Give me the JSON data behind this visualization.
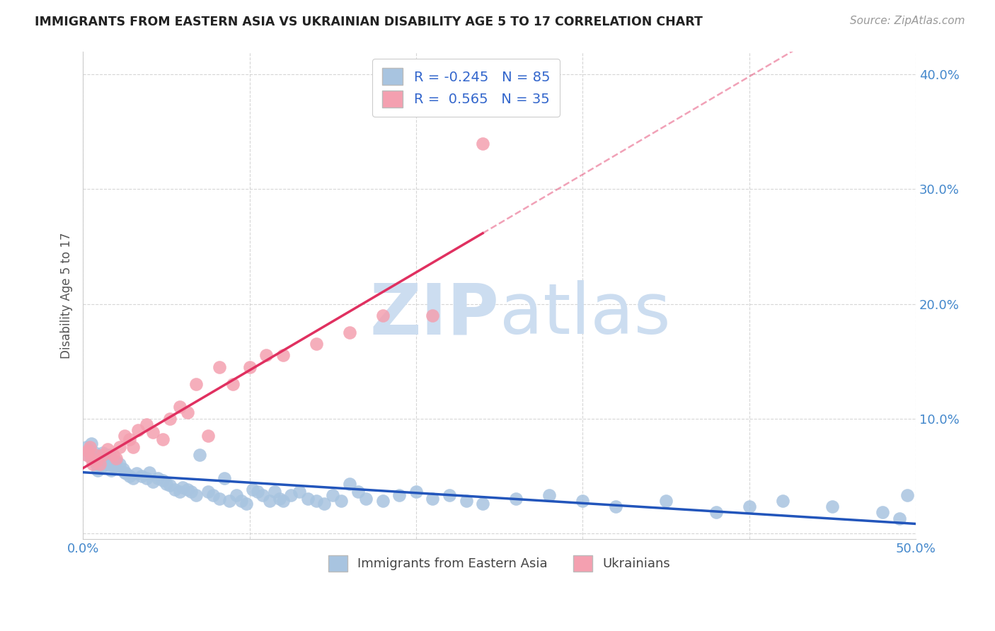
{
  "title": "IMMIGRANTS FROM EASTERN ASIA VS UKRAINIAN DISABILITY AGE 5 TO 17 CORRELATION CHART",
  "source": "Source: ZipAtlas.com",
  "ylabel": "Disability Age 5 to 17",
  "xlim": [
    0.0,
    0.5
  ],
  "ylim": [
    -0.005,
    0.42
  ],
  "yticks": [
    0.0,
    0.1,
    0.2,
    0.3,
    0.4
  ],
  "ytick_labels": [
    "",
    "10.0%",
    "20.0%",
    "30.0%",
    "40.0%"
  ],
  "xticks": [
    0.0,
    0.1,
    0.2,
    0.3,
    0.4,
    0.5
  ],
  "xtick_labels": [
    "0.0%",
    "",
    "",
    "",
    "",
    "50.0%"
  ],
  "blue_R": -0.245,
  "blue_N": 85,
  "pink_R": 0.565,
  "pink_N": 35,
  "blue_color": "#a8c4e0",
  "pink_color": "#f4a0b0",
  "blue_line_color": "#2255bb",
  "pink_line_color": "#e03060",
  "grid_color": "#cccccc",
  "background_color": "#ffffff",
  "watermark_color": "#ccddf0",
  "legend_label_blue": "Immigrants from Eastern Asia",
  "legend_label_pink": "Ukrainians",
  "blue_x": [
    0.002,
    0.003,
    0.004,
    0.005,
    0.006,
    0.007,
    0.008,
    0.009,
    0.01,
    0.011,
    0.012,
    0.013,
    0.014,
    0.015,
    0.016,
    0.017,
    0.018,
    0.019,
    0.02,
    0.022,
    0.024,
    0.025,
    0.026,
    0.028,
    0.03,
    0.032,
    0.035,
    0.038,
    0.04,
    0.042,
    0.045,
    0.048,
    0.05,
    0.052,
    0.055,
    0.058,
    0.06,
    0.063,
    0.065,
    0.068,
    0.07,
    0.075,
    0.078,
    0.082,
    0.085,
    0.088,
    0.092,
    0.095,
    0.098,
    0.102,
    0.105,
    0.108,
    0.112,
    0.115,
    0.118,
    0.12,
    0.125,
    0.13,
    0.135,
    0.14,
    0.145,
    0.15,
    0.155,
    0.16,
    0.165,
    0.17,
    0.18,
    0.19,
    0.2,
    0.21,
    0.22,
    0.23,
    0.24,
    0.26,
    0.28,
    0.3,
    0.32,
    0.35,
    0.38,
    0.4,
    0.42,
    0.45,
    0.48,
    0.49,
    0.495
  ],
  "blue_y": [
    0.075,
    0.068,
    0.072,
    0.078,
    0.065,
    0.07,
    0.06,
    0.055,
    0.063,
    0.058,
    0.07,
    0.065,
    0.068,
    0.06,
    0.068,
    0.055,
    0.06,
    0.058,
    0.063,
    0.06,
    0.056,
    0.053,
    0.052,
    0.05,
    0.048,
    0.052,
    0.05,
    0.048,
    0.053,
    0.045,
    0.048,
    0.046,
    0.043,
    0.042,
    0.038,
    0.036,
    0.04,
    0.038,
    0.036,
    0.033,
    0.068,
    0.036,
    0.033,
    0.03,
    0.048,
    0.028,
    0.033,
    0.028,
    0.026,
    0.038,
    0.036,
    0.033,
    0.028,
    0.036,
    0.03,
    0.028,
    0.033,
    0.036,
    0.03,
    0.028,
    0.026,
    0.033,
    0.028,
    0.043,
    0.036,
    0.03,
    0.028,
    0.033,
    0.036,
    0.03,
    0.033,
    0.028,
    0.026,
    0.03,
    0.033,
    0.028,
    0.023,
    0.028,
    0.018,
    0.023,
    0.028,
    0.023,
    0.018,
    0.013,
    0.033
  ],
  "pink_x": [
    0.002,
    0.003,
    0.004,
    0.005,
    0.006,
    0.007,
    0.008,
    0.01,
    0.012,
    0.015,
    0.018,
    0.02,
    0.022,
    0.025,
    0.028,
    0.03,
    0.033,
    0.038,
    0.042,
    0.048,
    0.052,
    0.058,
    0.063,
    0.068,
    0.075,
    0.082,
    0.09,
    0.1,
    0.11,
    0.12,
    0.14,
    0.16,
    0.18,
    0.21,
    0.24
  ],
  "pink_y": [
    0.068,
    0.072,
    0.075,
    0.065,
    0.06,
    0.068,
    0.063,
    0.06,
    0.068,
    0.073,
    0.068,
    0.065,
    0.075,
    0.085,
    0.082,
    0.075,
    0.09,
    0.095,
    0.088,
    0.082,
    0.1,
    0.11,
    0.105,
    0.13,
    0.085,
    0.145,
    0.13,
    0.145,
    0.155,
    0.155,
    0.165,
    0.175,
    0.19,
    0.19,
    0.34
  ]
}
